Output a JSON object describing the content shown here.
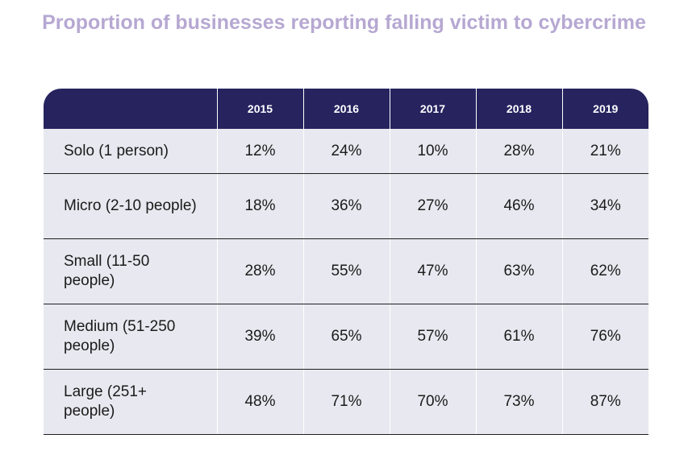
{
  "title": "Proportion of businesses reporting falling victim to cybercrime",
  "chart_data": {
    "type": "table",
    "title": "Proportion of businesses reporting falling victim to cybercrime",
    "columns": [
      "",
      "2015",
      "2016",
      "2017",
      "2018",
      "2019"
    ],
    "rows": [
      {
        "label": "Solo (1 person)",
        "values": [
          "12%",
          "24%",
          "10%",
          "28%",
          "21%"
        ]
      },
      {
        "label": "Micro (2-10 people)",
        "values": [
          "18%",
          "36%",
          "27%",
          "46%",
          "34%"
        ]
      },
      {
        "label": "Small (11-50 people)",
        "values": [
          "28%",
          "55%",
          "47%",
          "63%",
          "62%"
        ]
      },
      {
        "label": "Medium (51-250 people)",
        "values": [
          "39%",
          "65%",
          "57%",
          "61%",
          "76%"
        ]
      },
      {
        "label": "Large (251+ people)",
        "values": [
          "48%",
          "71%",
          "70%",
          "73%",
          "87%"
        ]
      }
    ]
  },
  "colors": {
    "title": "#b6a8d2",
    "header_bg": "#26235f",
    "row_bg": "#e8e8f0"
  }
}
